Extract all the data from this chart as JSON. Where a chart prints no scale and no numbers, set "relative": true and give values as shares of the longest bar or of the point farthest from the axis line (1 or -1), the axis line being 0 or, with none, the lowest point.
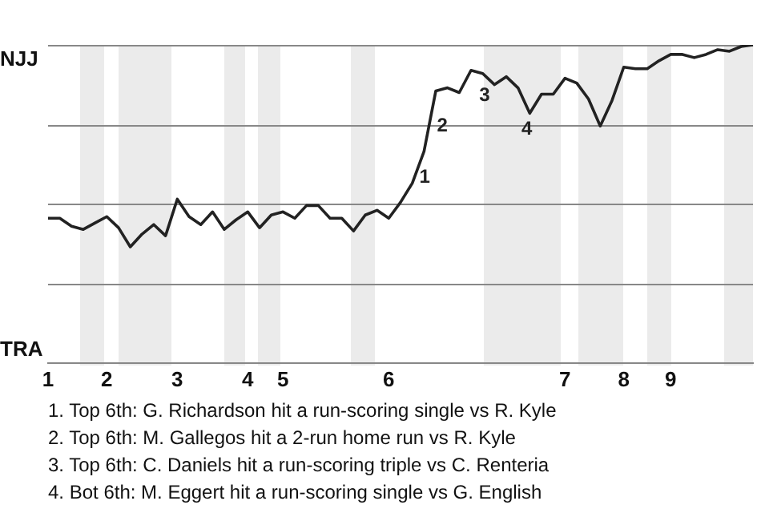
{
  "chart_data": {
    "type": "line",
    "categories": [
      "1",
      null,
      null,
      null,
      null,
      "2",
      null,
      null,
      null,
      null,
      null,
      "3",
      null,
      null,
      null,
      null,
      null,
      "4",
      null,
      null,
      "5",
      null,
      null,
      null,
      null,
      null,
      null,
      null,
      null,
      "6",
      null,
      null,
      null,
      null,
      null,
      null,
      null,
      null,
      null,
      null,
      null,
      null,
      null,
      null,
      "7",
      null,
      null,
      null,
      null,
      "8",
      null,
      null,
      null,
      "9",
      null,
      null,
      null,
      null,
      null,
      null,
      null
    ],
    "series": [
      {
        "color": "#222222",
        "values": [
          0.455,
          0.455,
          0.43,
          0.42,
          0.44,
          0.46,
          0.425,
          0.365,
          0.405,
          0.435,
          0.4,
          0.515,
          0.46,
          0.435,
          0.475,
          0.42,
          0.45,
          0.475,
          0.425,
          0.465,
          0.475,
          0.455,
          0.495,
          0.495,
          0.455,
          0.455,
          0.415,
          0.465,
          0.48,
          0.455,
          0.505,
          0.565,
          0.665,
          0.855,
          0.865,
          0.85,
          0.92,
          0.91,
          0.875,
          0.9,
          0.865,
          0.785,
          0.845,
          0.845,
          0.895,
          0.88,
          0.83,
          0.745,
          0.825,
          0.93,
          0.925,
          0.925,
          0.95,
          0.97,
          0.97,
          0.96,
          0.97,
          0.985,
          0.98,
          0.995,
          1.0
        ]
      }
    ],
    "relative": true,
    "grid": "y",
    "legend": false,
    "marker": "none",
    "line_style": "solid",
    "annotations": [
      "1",
      "2",
      "3",
      "4",
      "NJJ",
      "TRA",
      "1. Top 6th: G. Richardson hit a run-scoring single vs R. Kyle",
      "2. Top 6th: M. Gallegos hit a 2-run home run vs R. Kyle",
      "3. Top 6th: C. Daniels hit a run-scoring triple vs C. Renteria",
      "4. Bot 6th: M. Eggert hit a run-scoring single vs G. English"
    ]
  }
}
